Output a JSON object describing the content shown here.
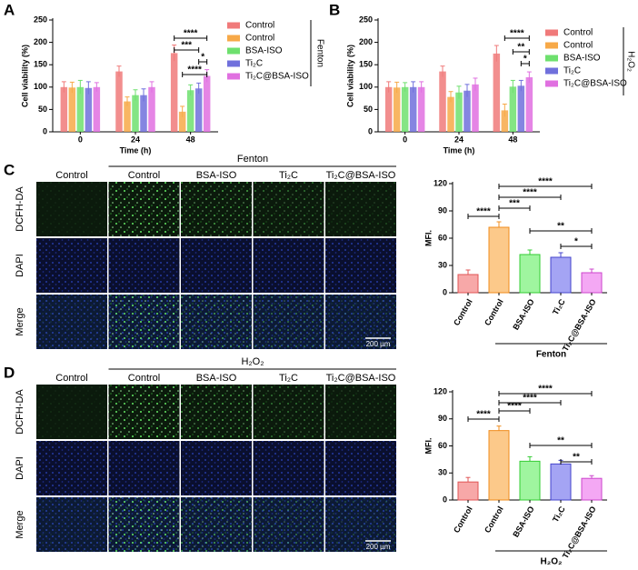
{
  "panel_labels": [
    "A",
    "B",
    "C",
    "D"
  ],
  "chart_data": [
    {
      "type": "bar",
      "ylabel": "Cell viability (%)",
      "xlabel": "Time (h)",
      "categories": [
        "0",
        "24",
        "48"
      ],
      "ylim": [
        0,
        250
      ],
      "yticks": [
        0,
        50,
        100,
        150,
        200,
        250
      ],
      "series": [
        {
          "name": "Control",
          "color": "#f07a7a",
          "values": [
            100,
            135,
            176
          ],
          "errors": [
            12,
            12,
            18
          ]
        },
        {
          "name": "Control",
          "color": "#f7a948",
          "values": [
            99,
            68,
            45
          ],
          "errors": [
            12,
            10,
            12
          ]
        },
        {
          "name": "BSA-ISO",
          "color": "#6ee06e",
          "values": [
            100,
            82,
            93
          ],
          "errors": [
            15,
            12,
            12
          ]
        },
        {
          "name": "Ti₂C",
          "color": "#7070dc",
          "values": [
            98,
            82,
            97
          ],
          "errors": [
            14,
            14,
            12
          ]
        },
        {
          "name": "Ti₂C@BSA-ISO",
          "color": "#e070e0",
          "values": [
            100,
            100,
            125
          ],
          "errors": [
            10,
            12,
            14
          ]
        }
      ],
      "side_label": "Fenton",
      "annotations": [
        "****",
        "***",
        "*",
        "****"
      ]
    },
    {
      "type": "bar",
      "ylabel": "Cell viability (%)",
      "xlabel": "Time (h)",
      "categories": [
        "0",
        "24",
        "48"
      ],
      "ylim": [
        0,
        250
      ],
      "yticks": [
        0,
        50,
        100,
        150,
        200,
        250
      ],
      "series": [
        {
          "name": "Control",
          "color": "#f07a7a",
          "values": [
            100,
            135,
            175
          ],
          "errors": [
            12,
            12,
            18
          ]
        },
        {
          "name": "Control",
          "color": "#f7a948",
          "values": [
            99,
            78,
            48
          ],
          "errors": [
            12,
            12,
            14
          ]
        },
        {
          "name": "BSA-ISO",
          "color": "#6ee06e",
          "values": [
            100,
            88,
            101
          ],
          "errors": [
            10,
            14,
            14
          ]
        },
        {
          "name": "Ti₂C",
          "color": "#7070dc",
          "values": [
            100,
            92,
            103
          ],
          "errors": [
            12,
            14,
            12
          ]
        },
        {
          "name": "Ti₂C@BSA-ISO",
          "color": "#e070e0",
          "values": [
            100,
            106,
            122
          ],
          "errors": [
            12,
            14,
            12
          ]
        }
      ],
      "side_label": "H₂O₂",
      "annotations": [
        "****",
        "**",
        "*"
      ]
    },
    {
      "type": "bar",
      "ylabel": "MFI.",
      "categories": [
        "Control",
        "Control",
        "BSA-ISO",
        "Ti₂C",
        "Ti₂C@BSA-ISO"
      ],
      "values": [
        20,
        72,
        42,
        39,
        22
      ],
      "errors": [
        5,
        6,
        5,
        5,
        4
      ],
      "colors": [
        "#f7a8a8",
        "#fcc98a",
        "#9ff59f",
        "#a4a4f4",
        "#f4a8f4"
      ],
      "edgecolors": [
        "#e05555",
        "#f08c1c",
        "#33cc33",
        "#4444cc",
        "#cc44cc"
      ],
      "ylim": [
        0,
        120
      ],
      "yticks": [
        0,
        30,
        60,
        90,
        120
      ],
      "group_label": "Fenton",
      "annotations": [
        "****",
        "****",
        "***",
        "****",
        "**",
        "*"
      ]
    },
    {
      "type": "bar",
      "ylabel": "MFI.",
      "categories": [
        "Control",
        "Control",
        "BSA-ISO",
        "Ti₂C",
        "Ti₂C@BSA-ISO"
      ],
      "values": [
        20,
        77,
        43,
        40,
        24
      ],
      "errors": [
        5,
        5,
        5,
        4,
        3
      ],
      "colors": [
        "#f7a8a8",
        "#fcc98a",
        "#9ff59f",
        "#a4a4f4",
        "#f4a8f4"
      ],
      "edgecolors": [
        "#e05555",
        "#f08c1c",
        "#33cc33",
        "#4444cc",
        "#cc44cc"
      ],
      "ylim": [
        0,
        120
      ],
      "yticks": [
        0,
        30,
        60,
        90,
        120
      ],
      "group_label": "H₂O₂",
      "annotations": [
        "****",
        "****",
        "****",
        "****",
        "**",
        "**"
      ]
    }
  ],
  "image_grids": [
    {
      "header": "Fenton",
      "columns": [
        "Control",
        "Control",
        "BSA-ISO",
        "Ti₂C",
        "Ti₂C@BSA-ISO"
      ],
      "rows": [
        "DCFH-DA",
        "DAPI",
        "Merge"
      ],
      "scale_bar": "200 µm"
    },
    {
      "header": "H₂O₂",
      "columns": [
        "Control",
        "Control",
        "BSA-ISO",
        "Ti₂C",
        "Ti₂C@BSA-ISO"
      ],
      "rows": [
        "DCFH-DA",
        "DAPI",
        "Merge"
      ],
      "scale_bar": "200 µm"
    }
  ]
}
